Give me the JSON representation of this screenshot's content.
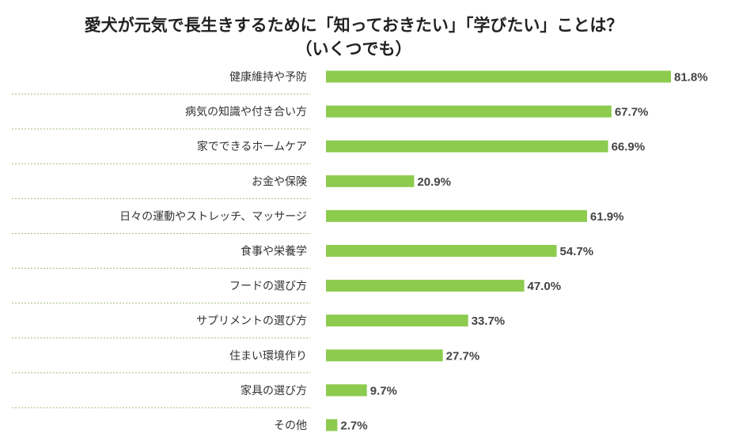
{
  "chart_data": {
    "type": "bar",
    "orientation": "horizontal",
    "title": "愛犬が元気で長生きするために「知っておきたい」「学びたい」ことは？",
    "subtitle": "（いくつでも）",
    "categories": [
      "健康維持や予防",
      "病気の知識や付き合い方",
      "家でできるホームケア",
      "お金や保険",
      "日々の運動やストレッチ、マッサージ",
      "食事や栄養学",
      "フードの選び方",
      "サプリメントの選び方",
      "住まい環境作り",
      "家具の選び方",
      "その他"
    ],
    "values": [
      81.8,
      67.7,
      66.9,
      20.9,
      61.9,
      54.7,
      47.0,
      33.7,
      27.7,
      9.7,
      2.7
    ],
    "labels": [
      "81.8%",
      "67.7%",
      "66.9%",
      "20.9%",
      "61.9%",
      "54.7%",
      "47.0%",
      "33.7%",
      "27.7%",
      "9.7%",
      "2.7%"
    ],
    "unit": "%",
    "xlabel": "",
    "ylabel": "",
    "xlim": [
      0,
      100
    ],
    "bar_color": "#8dcb4f",
    "grid": false
  }
}
